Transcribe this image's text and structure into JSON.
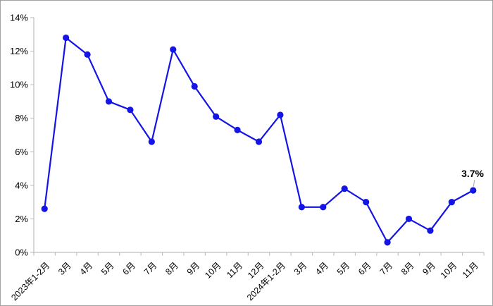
{
  "chart_data": {
    "type": "line",
    "title": "",
    "xlabel": "",
    "ylabel": "",
    "categories": [
      "2023年1-2月",
      "3月",
      "4月",
      "5月",
      "6月",
      "7月",
      "8月",
      "9月",
      "10月",
      "11月",
      "12月",
      "2024年1-2月",
      "3月",
      "4月",
      "5月",
      "6月",
      "7月",
      "8月",
      "9月",
      "10月",
      "11月"
    ],
    "values": [
      2.6,
      12.8,
      11.8,
      9.0,
      8.5,
      6.6,
      12.1,
      9.9,
      8.1,
      7.3,
      6.6,
      8.2,
      2.7,
      2.7,
      3.8,
      3.0,
      0.6,
      2.0,
      1.3,
      3.0,
      3.7
    ],
    "ylim": [
      0,
      14
    ],
    "ytick_step": 2,
    "ytick_suffix": "%",
    "grid": false,
    "legend_position": "none",
    "annotation": {
      "text": "3.7%",
      "index": 20
    },
    "colors": {
      "line": "#1414e6",
      "marker": "#1414e6",
      "axis": "#bfbfbf",
      "tick": "#bfbfbf",
      "text": "#000000",
      "leader": "#a6a6a6",
      "background": "#ffffff",
      "border": "#a3a3a3"
    }
  }
}
